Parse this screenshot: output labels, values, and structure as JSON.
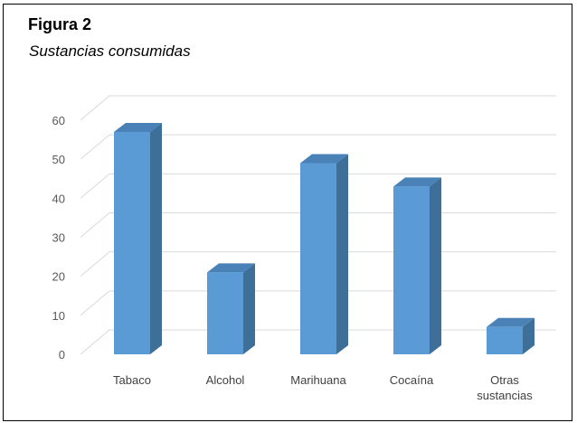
{
  "figure": {
    "label": "Figura 2",
    "title": "Sustancias consumidas"
  },
  "colors": {
    "bar_front": "#5b9bd5",
    "bar_side": "#3d6f99",
    "bar_top": "#4a82b8",
    "grid": "#d9d9d9",
    "axis_text": "#595959"
  },
  "chart_data": {
    "type": "bar",
    "style": "3d-column",
    "categories": [
      "Tabaco",
      "Alcohol",
      "Marihuana",
      "Cocaína",
      "Otras sustancias"
    ],
    "category_lines": [
      [
        "Tabaco"
      ],
      [
        "Alcohol"
      ],
      [
        "Marihuana"
      ],
      [
        "Cocaína"
      ],
      [
        "Otras",
        "sustancias"
      ]
    ],
    "values": [
      57,
      21,
      49,
      43,
      7
    ],
    "title": "",
    "xlabel": "",
    "ylabel": "",
    "ylim": [
      0,
      60
    ],
    "yticks": [
      0,
      10,
      20,
      30,
      40,
      50,
      60
    ],
    "grid": true,
    "legend": "none"
  }
}
